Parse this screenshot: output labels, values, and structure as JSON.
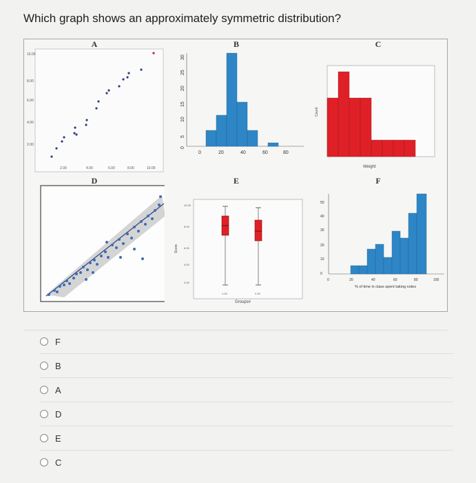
{
  "question": "Which graph shows an approximately symmetric distribution?",
  "panels": [
    {
      "label": "A",
      "type": "scatter",
      "y_ticks": [
        "10.00",
        "8.00",
        "6.00",
        "4.00",
        "2.00"
      ],
      "x_ticks": [
        "2.00",
        "4.00",
        "6.00",
        "8.00",
        "10.00"
      ]
    },
    {
      "label": "B",
      "type": "histogram",
      "y_ticks": [
        "0",
        "5",
        "10",
        "15",
        "20",
        "25",
        "30"
      ],
      "x_ticks": [
        "0",
        "20",
        "40",
        "60",
        "80"
      ],
      "values": [
        5,
        10,
        30,
        14,
        5,
        1
      ]
    },
    {
      "label": "C",
      "type": "histogram",
      "ylabel": "Count",
      "xlabel": "Weight",
      "values": [
        14,
        22,
        14,
        14,
        5,
        5,
        5,
        5
      ]
    },
    {
      "label": "D",
      "type": "scatter-with-band"
    },
    {
      "label": "E",
      "type": "boxplot",
      "ylabel": "Score",
      "xlabel": "Groups#",
      "y_ticks": [
        "10.00",
        "8.00",
        "6.00",
        "4.00",
        "2.00"
      ],
      "x_ticks": [
        "1.00",
        "2.00"
      ]
    },
    {
      "label": "F",
      "type": "histogram",
      "xlabel": "% of time in class spent taking notes",
      "y_ticks": [
        "50",
        "40",
        "30",
        "20",
        "10",
        "0"
      ],
      "x_ticks": [
        "0",
        "20",
        "40",
        "60",
        "80",
        "100"
      ],
      "values": [
        5,
        5,
        11,
        14,
        8,
        19,
        16,
        28,
        40
      ]
    }
  ],
  "options": [
    "F",
    "B",
    "A",
    "D",
    "E",
    "C"
  ],
  "colors": {
    "bar_blue": "#2f86c6",
    "bar_red": "#e02027",
    "dot_blue": "#3e6db5"
  }
}
